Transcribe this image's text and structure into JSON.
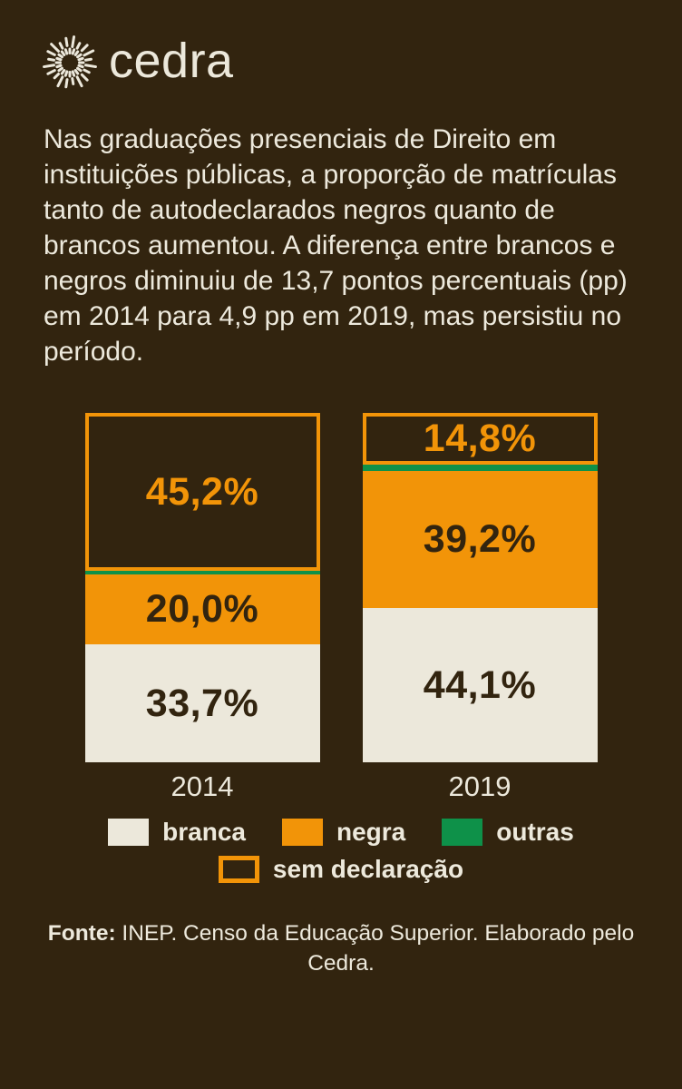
{
  "page": {
    "background": "#32240F",
    "text_color": "#EDE9DC"
  },
  "brand": {
    "name": "cedra",
    "icon": "sunburst-icon",
    "color": "#ECE8DB"
  },
  "intro": {
    "text": "Nas graduações presenciais de Direito em instituições públicas, a proporção de matrículas tanto de autodeclarados negros quanto de brancos aumentou. A diferença entre brancos e negros diminuiu de 13,7 pontos percentuais (pp) em 2014 para 4,9 pp em 2019, mas persistiu no período."
  },
  "chart_data": {
    "type": "bar",
    "variant": "stacked-100-percent-columns",
    "categories": [
      "2014",
      "2019"
    ],
    "series": [
      {
        "name": "branca",
        "color": "#ECE8DB",
        "values": [
          33.7,
          44.1
        ],
        "labels": [
          "33,7%",
          "44,1%"
        ],
        "label_color": "#32240F"
      },
      {
        "name": "negra",
        "color": "#F29408",
        "values": [
          20.0,
          39.2
        ],
        "labels": [
          "20,0%",
          "39,2%"
        ],
        "label_color": "#32240F"
      },
      {
        "name": "outras",
        "color": "#0E9149",
        "values": [
          1.1,
          1.9
        ],
        "labels": [
          "",
          ""
        ],
        "label_color": "",
        "note": "values estimated as remainder to 100%, no data label shown"
      },
      {
        "name": "sem declaração",
        "color": "none",
        "border_color": "#F29408",
        "values": [
          45.2,
          14.8
        ],
        "labels": [
          "45,2%",
          "14,8%"
        ],
        "label_color": "#F29408"
      }
    ],
    "stack_order_top_to_bottom": [
      "sem declaração",
      "outras",
      "negra",
      "branca"
    ],
    "ylim": [
      0,
      100
    ],
    "grid": false,
    "legend_position": "bottom",
    "legend": [
      {
        "label": "branca",
        "swatch": "#ECE8DB"
      },
      {
        "label": "negra",
        "swatch": "#F29408"
      },
      {
        "label": "outras",
        "swatch": "#0E9149"
      },
      {
        "label": "sem declaração",
        "swatch": "outline",
        "border_color": "#F29408"
      }
    ]
  },
  "footer": {
    "source_label": "Fonte:",
    "source_text": "INEP. Censo da Educação Superior. Elaborado pelo Cedra."
  }
}
